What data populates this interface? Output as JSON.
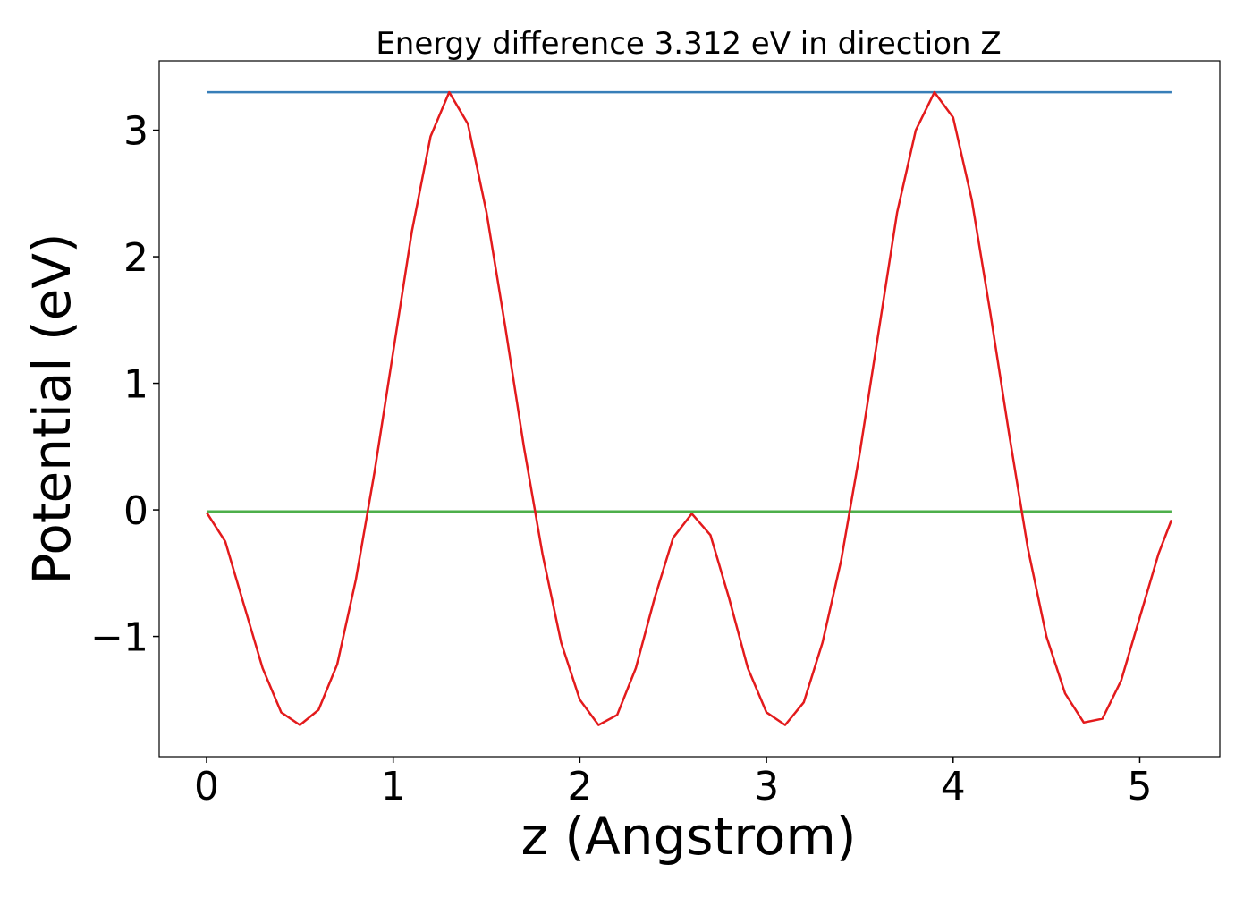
{
  "chart_data": {
    "type": "line",
    "title": "Energy difference 3.312 eV in direction Z",
    "x_label": "z (Angstrom)",
    "y_label": "Potential (eV)",
    "xlim": [
      -0.254,
      5.429
    ],
    "ylim": [
      -1.95,
      3.548
    ],
    "xticks": [
      0,
      1,
      2,
      3,
      4,
      5
    ],
    "yticks": [
      {
        "value": -1,
        "label": "−1"
      },
      0,
      1,
      2,
      3
    ],
    "grid": false,
    "series": [
      {
        "color": "#e31a1c",
        "x": [
          0,
          0.1,
          0.2,
          0.3,
          0.4,
          0.5,
          0.6,
          0.7,
          0.8,
          0.9,
          1.0,
          1.1,
          1.2,
          1.3,
          1.4,
          1.5,
          1.6,
          1.7,
          1.8,
          1.9,
          2.0,
          2.1,
          2.2,
          2.3,
          2.4,
          2.5,
          2.6,
          2.7,
          2.8,
          2.9,
          3.0,
          3.1,
          3.2,
          3.3,
          3.4,
          3.5,
          3.6,
          3.7,
          3.8,
          3.9,
          4.0,
          4.1,
          4.2,
          4.3,
          4.4,
          4.5,
          4.6,
          4.7,
          4.8,
          4.9,
          5.0,
          5.1,
          5.17
        ],
        "values": [
          -0.02,
          -0.25,
          -0.75,
          -1.25,
          -1.6,
          -1.7,
          -1.58,
          -1.22,
          -0.55,
          0.3,
          1.25,
          2.2,
          2.95,
          3.3,
          3.05,
          2.35,
          1.45,
          0.5,
          -0.35,
          -1.05,
          -1.5,
          -1.7,
          -1.62,
          -1.25,
          -0.7,
          -0.22,
          -0.03,
          -0.2,
          -0.7,
          -1.25,
          -1.6,
          -1.7,
          -1.52,
          -1.05,
          -0.4,
          0.45,
          1.4,
          2.35,
          3.0,
          3.3,
          3.1,
          2.45,
          1.55,
          0.6,
          -0.3,
          -1.0,
          -1.45,
          -1.68,
          -1.65,
          -1.35,
          -0.85,
          -0.35,
          -0.08
        ]
      },
      {
        "color": "#377eb8",
        "x": [
          0,
          5.17
        ],
        "values": [
          3.3,
          3.3
        ]
      },
      {
        "color": "#4daf4a",
        "x": [
          0,
          5.17
        ],
        "values": [
          -0.012,
          -0.012
        ]
      }
    ]
  }
}
